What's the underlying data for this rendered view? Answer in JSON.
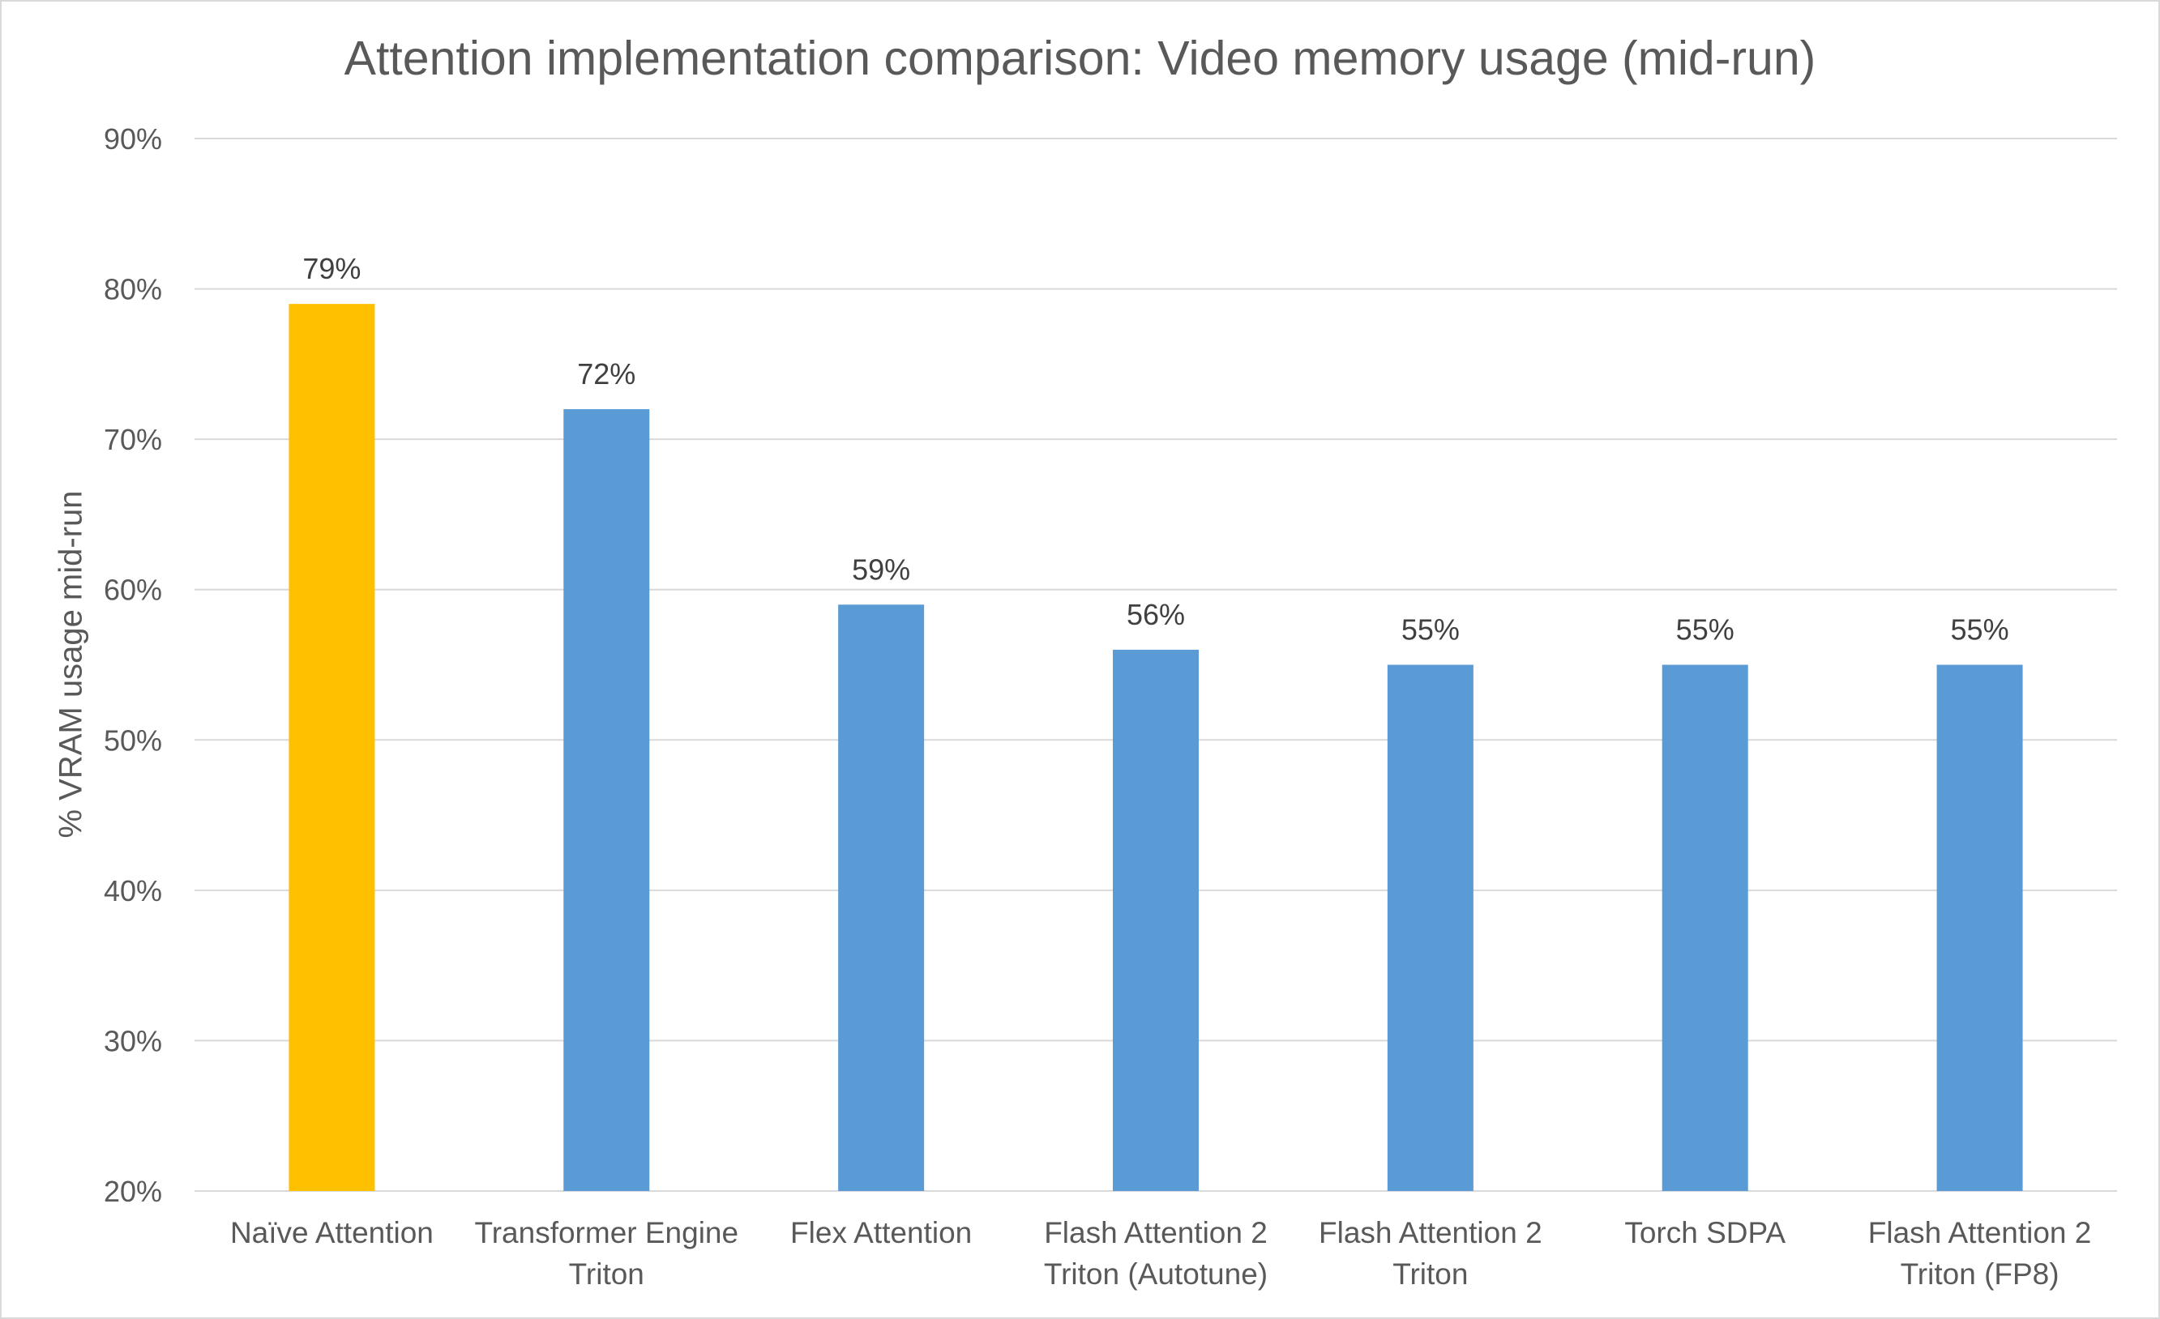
{
  "chart_data": {
    "type": "bar",
    "title": "Attention implementation comparison: Video memory usage (mid-run)",
    "xlabel": "",
    "ylabel": "% VRAM usage mid-run",
    "ylim": [
      20,
      90
    ],
    "yticks": [
      "20%",
      "30%",
      "40%",
      "50%",
      "60%",
      "70%",
      "80%",
      "90%"
    ],
    "ytick_values": [
      20,
      30,
      40,
      50,
      60,
      70,
      80,
      90
    ],
    "grid": true,
    "categories": [
      [
        "Naïve Attention"
      ],
      [
        "Transformer Engine",
        "Triton"
      ],
      [
        "Flex Attention"
      ],
      [
        "Flash Attention 2",
        "Triton (Autotune)"
      ],
      [
        "Flash Attention 2",
        "Triton"
      ],
      [
        "Torch SDPA"
      ],
      [
        "Flash Attention 2",
        "Triton (FP8)"
      ]
    ],
    "values": [
      79,
      72,
      59,
      56,
      55,
      55,
      55
    ],
    "data_labels": [
      "79%",
      "72%",
      "59%",
      "56%",
      "55%",
      "55%",
      "55%"
    ],
    "bar_colors": [
      "#FFC000",
      "#5B9BD5",
      "#5B9BD5",
      "#5B9BD5",
      "#5B9BD5",
      "#5B9BD5",
      "#5B9BD5"
    ]
  },
  "colors": {
    "gridline": "#d9d9d9",
    "text": "#595959",
    "data_label": "#404040",
    "highlight": "#FFC000",
    "series": "#5B9BD5"
  }
}
